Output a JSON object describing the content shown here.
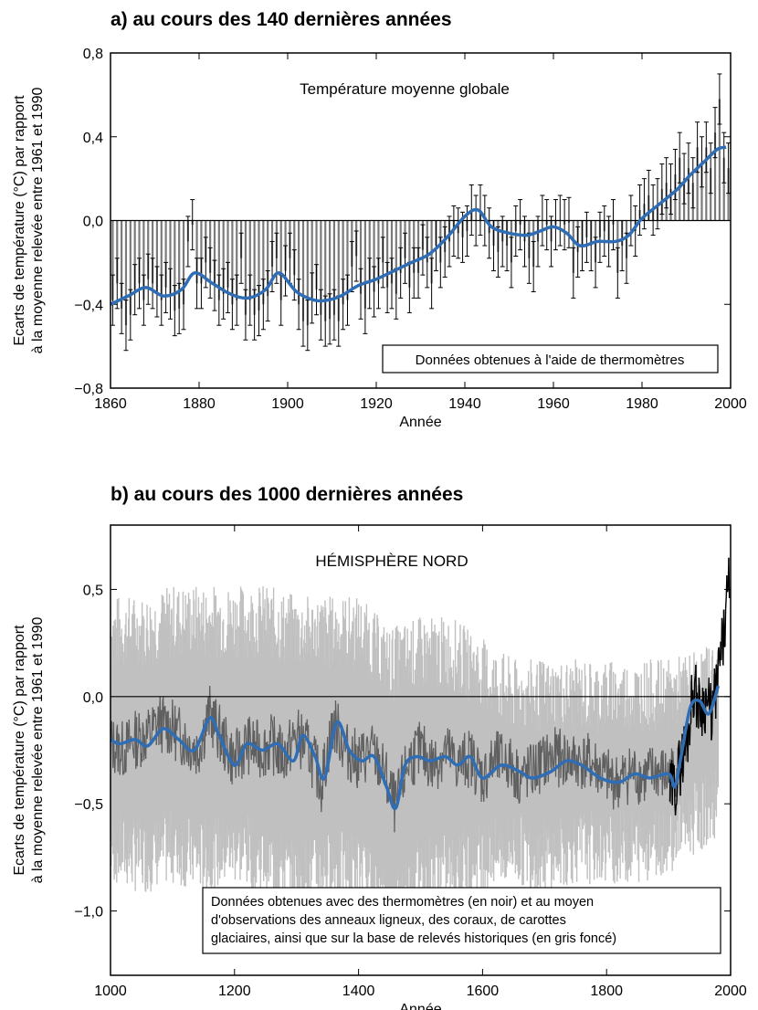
{
  "chart_data": [
    {
      "type": "bar",
      "panel_title": "a) au cours des 140 dernières années",
      "inner_title": "Température moyenne globale",
      "annotation": "Données obtenues à l'aide de thermomètres",
      "xlabel": "Année",
      "ylabel": [
        "Ecarts de température (°C) par rapport",
        "à la moyenne relevée entre 1961 et 1990"
      ],
      "xlim": [
        1860,
        2000
      ],
      "ylim": [
        -0.8,
        0.8
      ],
      "xticks": [
        1860,
        1880,
        1900,
        1920,
        1940,
        1960,
        1980,
        2000
      ],
      "xtick_labels": [
        "1860",
        "1880",
        "1900",
        "1920",
        "1940",
        "1960",
        "1980",
        "2000"
      ],
      "yticks": [
        0.8,
        0.4,
        0.0,
        -0.4,
        -0.8
      ],
      "ytick_labels": [
        "0,8",
        "0,4",
        "0,0",
        "−0,4",
        "−0,8"
      ],
      "error_bar_halfwidth": 0.12,
      "colors": {
        "bars": "#7a7a7a",
        "smooth": "#2f6db5",
        "errors": "#000000"
      },
      "x_start": 1860,
      "annual_values": [
        -0.38,
        -0.3,
        -0.42,
        -0.5,
        -0.45,
        -0.33,
        -0.3,
        -0.38,
        -0.28,
        -0.3,
        -0.34,
        -0.38,
        -0.32,
        -0.35,
        -0.43,
        -0.42,
        -0.4,
        -0.1,
        -0.02,
        -0.3,
        -0.3,
        -0.2,
        -0.25,
        -0.31,
        -0.38,
        -0.35,
        -0.32,
        -0.4,
        -0.38,
        -0.18,
        -0.45,
        -0.38,
        -0.45,
        -0.43,
        -0.4,
        -0.36,
        -0.22,
        -0.18,
        -0.38,
        -0.24,
        -0.18,
        -0.26,
        -0.4,
        -0.48,
        -0.5,
        -0.37,
        -0.33,
        -0.45,
        -0.48,
        -0.47,
        -0.45,
        -0.48,
        -0.4,
        -0.38,
        -0.22,
        -0.17,
        -0.35,
        -0.42,
        -0.3,
        -0.34,
        -0.3,
        -0.2,
        -0.32,
        -0.3,
        -0.35,
        -0.25,
        -0.18,
        -0.32,
        -0.25,
        -0.25,
        -0.14,
        -0.2,
        -0.3,
        -0.12,
        -0.2,
        -0.15,
        -0.1,
        -0.05,
        -0.06,
        -0.08,
        -0.05,
        0.05,
        0.0,
        0.05,
        0.0,
        -0.06,
        -0.12,
        -0.15,
        -0.1,
        -0.12,
        -0.2,
        -0.05,
        -0.02,
        -0.1,
        -0.18,
        -0.22,
        -0.1,
        0.0,
        -0.02,
        -0.1,
        -0.02,
        0.0,
        -0.02,
        -0.01,
        -0.25,
        -0.15,
        -0.12,
        -0.08,
        -0.12,
        -0.2,
        -0.08,
        -0.05,
        -0.1,
        -0.02,
        -0.25,
        -0.12,
        -0.18,
        0.0,
        -0.05,
        0.05,
        0.08,
        0.12,
        0.05,
        0.08,
        0.15,
        0.18,
        0.15,
        0.22,
        0.3,
        0.2,
        0.25,
        0.18,
        0.35,
        0.28,
        0.35,
        0.25,
        0.42,
        0.58,
        0.3,
        0.25
      ],
      "smoothed": {
        "x": [
          1860,
          1864,
          1868,
          1872,
          1876,
          1879,
          1883,
          1887,
          1891,
          1895,
          1898,
          1902,
          1906,
          1909,
          1912,
          1916,
          1920,
          1924,
          1928,
          1932,
          1936,
          1940,
          1943,
          1946,
          1950,
          1954,
          1957,
          1960,
          1963,
          1966,
          1970,
          1974,
          1977,
          1980,
          1984,
          1988,
          1991,
          1994,
          1997,
          1999
        ],
        "y": [
          -0.4,
          -0.36,
          -0.32,
          -0.36,
          -0.33,
          -0.25,
          -0.3,
          -0.35,
          -0.37,
          -0.33,
          -0.25,
          -0.34,
          -0.38,
          -0.38,
          -0.36,
          -0.31,
          -0.28,
          -0.24,
          -0.2,
          -0.16,
          -0.08,
          0.02,
          0.05,
          -0.03,
          -0.06,
          -0.07,
          -0.05,
          -0.03,
          -0.06,
          -0.12,
          -0.1,
          -0.1,
          -0.07,
          0.01,
          0.08,
          0.15,
          0.22,
          0.28,
          0.34,
          0.35
        ]
      }
    },
    {
      "type": "line",
      "panel_title": "b) au cours des 1000 dernières années",
      "inner_title": "HÉMISPHÈRE NORD",
      "annotation": [
        "Données obtenues avec des thermomètres (en noir) et au moyen",
        "d'observations des anneaux ligneux, des coraux, de carottes",
        "glaciaires, ainsi que sur la base de relevés historiques (en gris foncé)"
      ],
      "xlabel": "Année",
      "ylabel": [
        "Ecarts de température (°C) par rapport",
        "à la moyenne relevée entre 1961 et 1990"
      ],
      "xlim": [
        1000,
        2000
      ],
      "ylim": [
        -1.3,
        0.8
      ],
      "xticks": [
        1000,
        1200,
        1400,
        1600,
        1800,
        2000
      ],
      "xtick_labels": [
        "1000",
        "1200",
        "1400",
        "1600",
        "1800",
        "2000"
      ],
      "yticks": [
        0.5,
        0.0,
        -0.5,
        -1.0
      ],
      "ytick_labels": [
        "0,5",
        "0,0",
        "−0,5",
        "−1,0"
      ],
      "colors": {
        "uncertainty": "#c0c0c0",
        "proxy": "#5f5f5f",
        "instrumental": "#000000",
        "smooth": "#2f6db5"
      },
      "uncertainty_band": {
        "x": [
          1000,
          1050,
          1100,
          1150,
          1200,
          1250,
          1300,
          1350,
          1400,
          1450,
          1500,
          1550,
          1600,
          1650,
          1700,
          1750,
          1800,
          1850,
          1900,
          1950,
          1980
        ],
        "upper": [
          0.3,
          0.3,
          0.35,
          0.35,
          0.35,
          0.35,
          0.3,
          0.3,
          0.3,
          0.15,
          0.2,
          0.2,
          0.1,
          0.0,
          0.0,
          0.0,
          0.0,
          0.0,
          0.0,
          0.05,
          0.1
        ],
        "lower": [
          -0.7,
          -0.75,
          -0.7,
          -0.75,
          -0.7,
          -0.75,
          -0.85,
          -0.8,
          -0.8,
          -1.0,
          -0.8,
          -0.8,
          -0.75,
          -0.7,
          -0.75,
          -0.7,
          -0.7,
          -0.7,
          -0.65,
          -0.55,
          -0.5
        ]
      },
      "proxy_series": {
        "x": [
          1000,
          1020,
          1040,
          1060,
          1080,
          1100,
          1120,
          1140,
          1160,
          1180,
          1200,
          1220,
          1240,
          1260,
          1280,
          1300,
          1320,
          1340,
          1360,
          1380,
          1400,
          1420,
          1440,
          1460,
          1480,
          1500,
          1520,
          1540,
          1560,
          1580,
          1600,
          1620,
          1640,
          1660,
          1680,
          1700,
          1720,
          1740,
          1760,
          1780,
          1800,
          1820,
          1840,
          1860,
          1880,
          1900,
          1920
        ],
        "y": [
          -0.22,
          -0.25,
          -0.2,
          -0.18,
          -0.12,
          -0.15,
          -0.2,
          -0.25,
          -0.08,
          -0.2,
          -0.3,
          -0.22,
          -0.25,
          -0.22,
          -0.28,
          -0.18,
          -0.25,
          -0.4,
          -0.12,
          -0.25,
          -0.3,
          -0.25,
          -0.35,
          -0.52,
          -0.3,
          -0.25,
          -0.32,
          -0.25,
          -0.32,
          -0.28,
          -0.38,
          -0.3,
          -0.3,
          -0.38,
          -0.35,
          -0.3,
          -0.28,
          -0.3,
          -0.3,
          -0.32,
          -0.38,
          -0.4,
          -0.35,
          -0.38,
          -0.35,
          -0.38,
          -0.3
        ]
      },
      "instrumental_series": {
        "x": [
          1902,
          1910,
          1920,
          1930,
          1940,
          1950,
          1960,
          1970,
          1980,
          1990,
          1998
        ],
        "y": [
          -0.45,
          -0.42,
          -0.3,
          -0.2,
          0.05,
          -0.05,
          -0.02,
          -0.08,
          0.1,
          0.3,
          0.55
        ]
      },
      "smoothed": {
        "x": [
          1000,
          1015,
          1040,
          1060,
          1085,
          1110,
          1135,
          1160,
          1175,
          1200,
          1220,
          1245,
          1270,
          1295,
          1310,
          1330,
          1345,
          1365,
          1385,
          1405,
          1425,
          1445,
          1460,
          1475,
          1495,
          1515,
          1540,
          1560,
          1580,
          1600,
          1630,
          1660,
          1680,
          1710,
          1735,
          1760,
          1790,
          1820,
          1845,
          1870,
          1900,
          1910,
          1920,
          1935,
          1950,
          1965,
          1980
        ],
        "y": [
          -0.2,
          -0.22,
          -0.2,
          -0.23,
          -0.15,
          -0.2,
          -0.25,
          -0.1,
          -0.18,
          -0.32,
          -0.22,
          -0.25,
          -0.22,
          -0.3,
          -0.18,
          -0.28,
          -0.38,
          -0.12,
          -0.25,
          -0.3,
          -0.28,
          -0.42,
          -0.52,
          -0.32,
          -0.28,
          -0.3,
          -0.28,
          -0.32,
          -0.28,
          -0.38,
          -0.32,
          -0.35,
          -0.38,
          -0.35,
          -0.3,
          -0.32,
          -0.38,
          -0.4,
          -0.36,
          -0.38,
          -0.36,
          -0.42,
          -0.28,
          -0.05,
          -0.02,
          -0.08,
          0.05
        ]
      }
    }
  ]
}
